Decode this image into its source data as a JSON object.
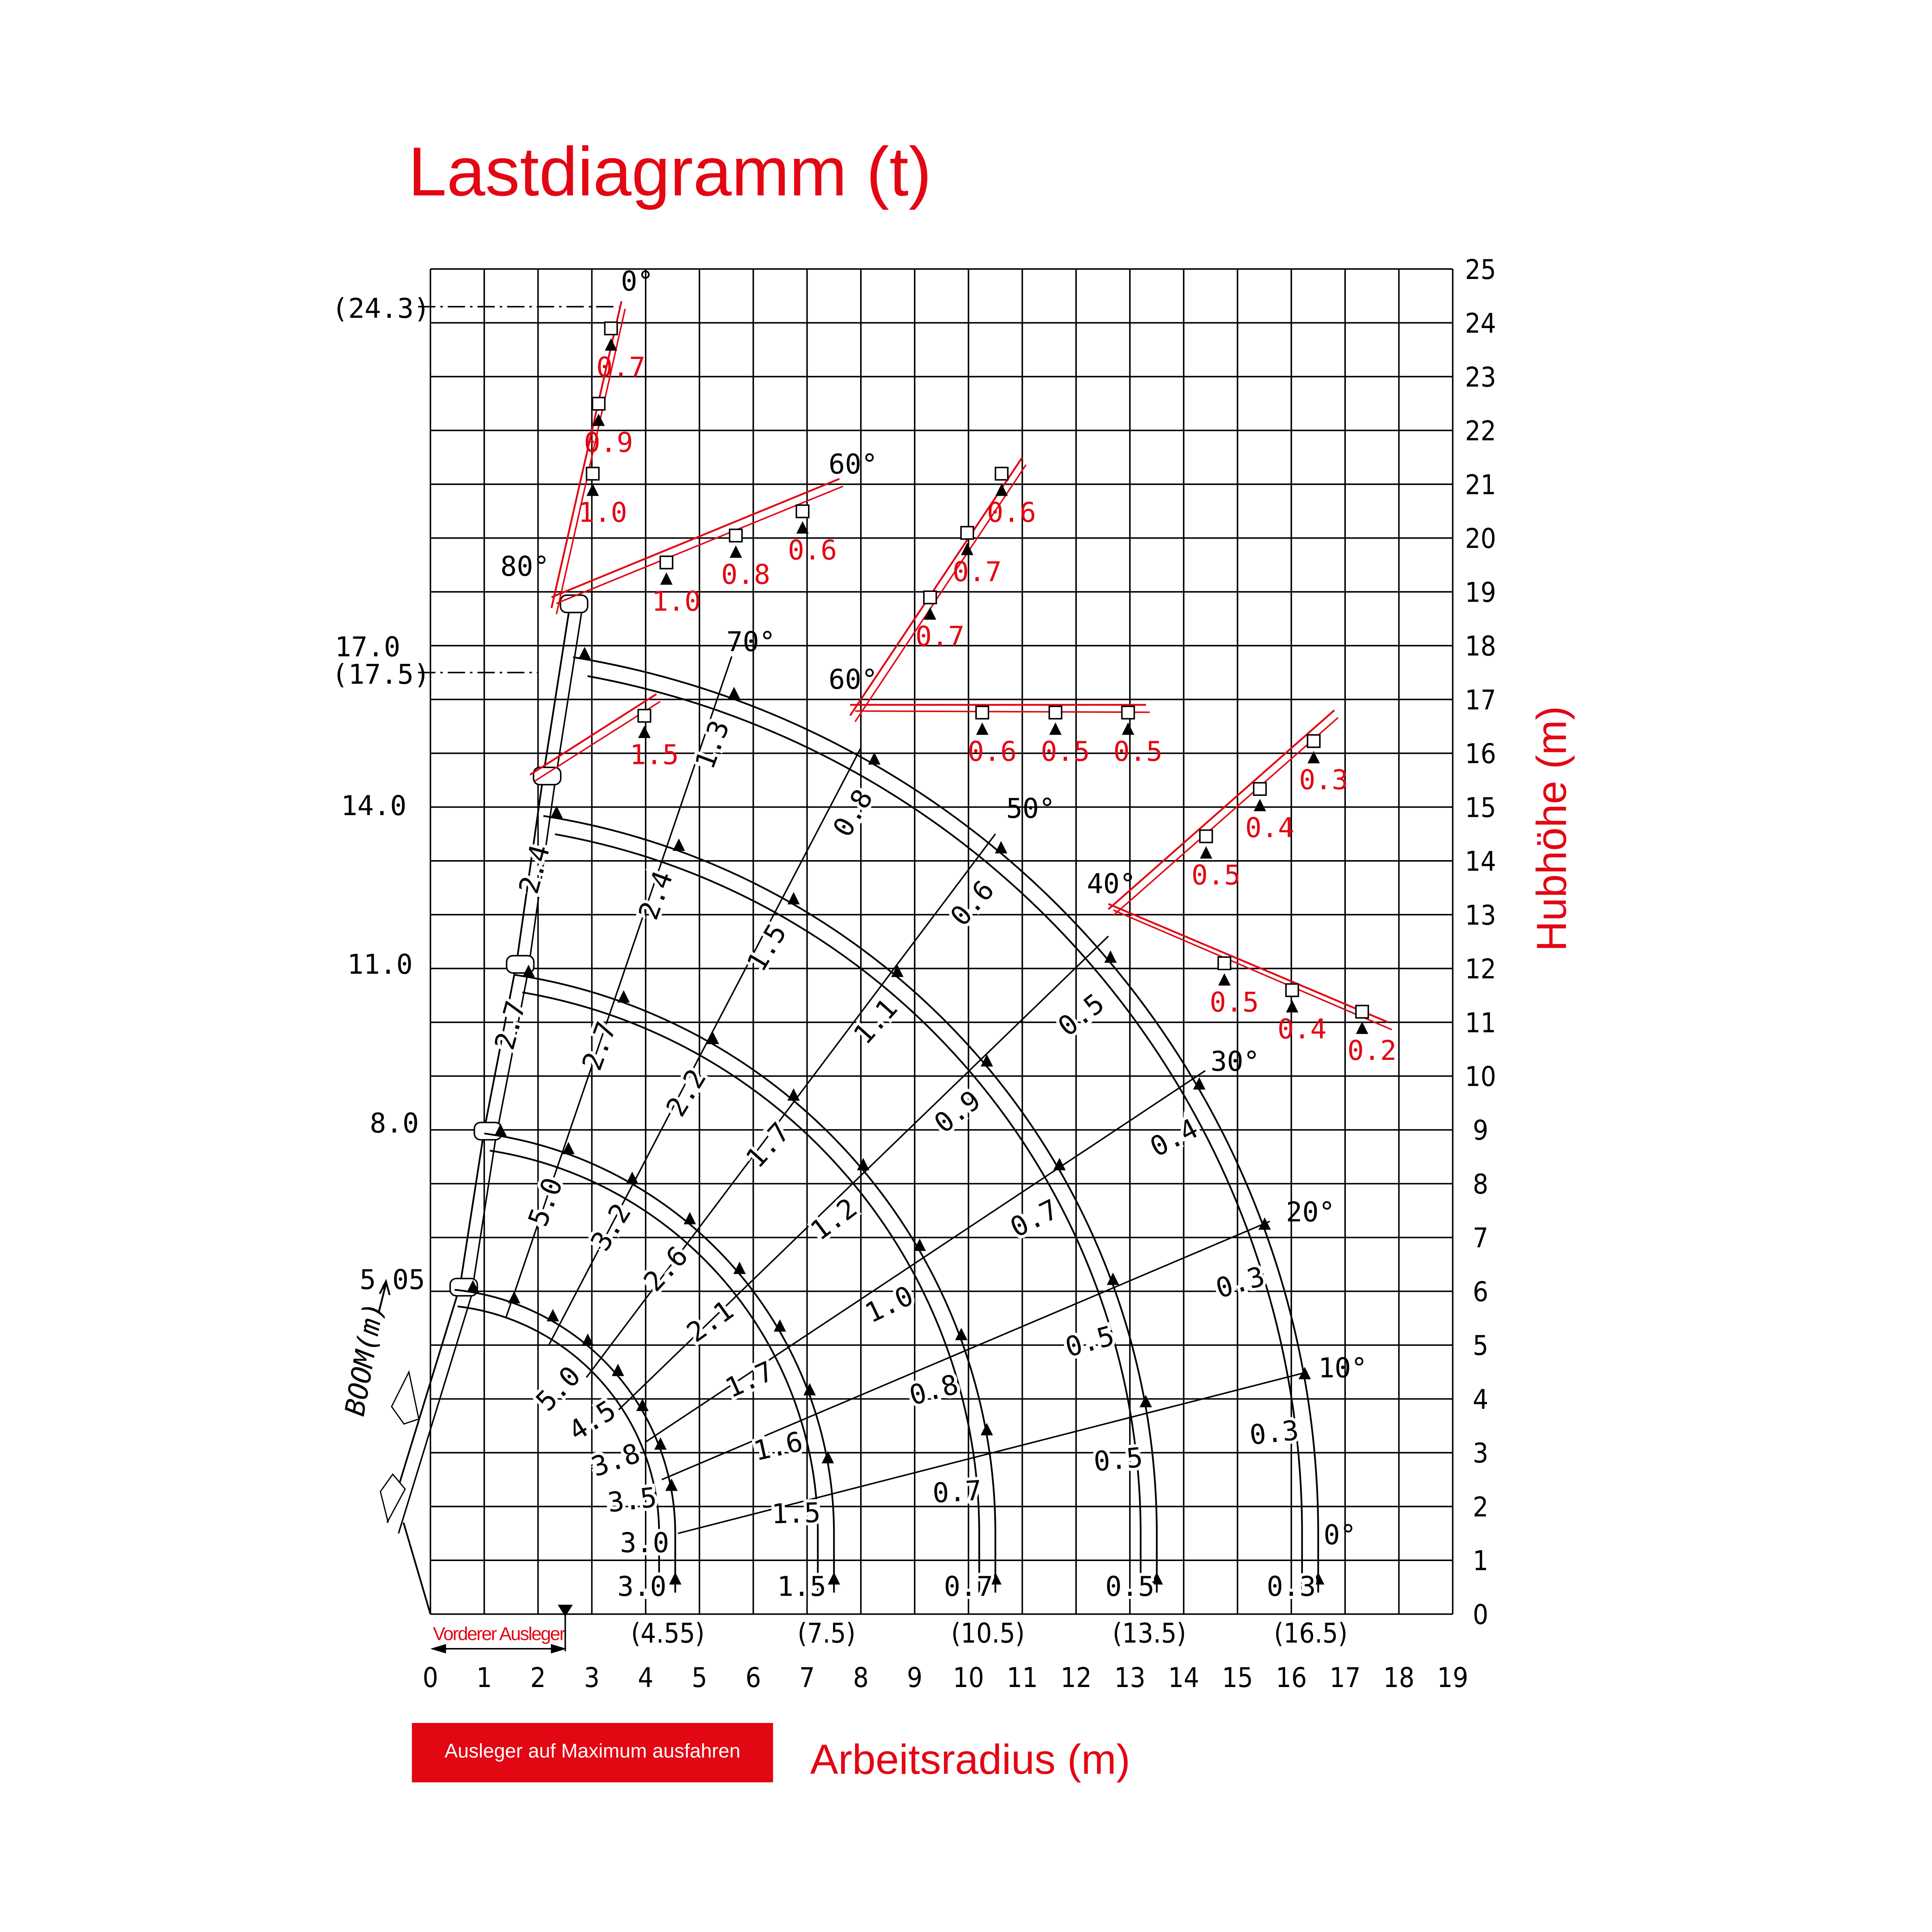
{
  "title": "Lastdiagramm (t)",
  "y_axis_label": "Hubhöhe (m)",
  "x_axis_label": "Arbeitsradius (m)",
  "boom_axis_label": "BOOM(m)",
  "extend_button_label": "Ausleger auf Maximum ausfahren",
  "front_boom_label": "Vorderer Ausleger",
  "colors": {
    "accent": "#e30613",
    "lines": "#000000"
  },
  "chart_data": {
    "type": "load-diagram",
    "xlim": [
      0,
      19
    ],
    "ylim": [
      0,
      25
    ],
    "grid": true,
    "x_ticks": [
      "0",
      "1",
      "2",
      "3",
      "4",
      "5",
      "6",
      "7",
      "8",
      "9",
      "10",
      "11",
      "12",
      "13",
      "14",
      "15",
      "16",
      "17",
      "18",
      "19"
    ],
    "y_ticks": [
      "0",
      "1",
      "2",
      "3",
      "4",
      "5",
      "6",
      "7",
      "8",
      "9",
      "10",
      "11",
      "12",
      "13",
      "14",
      "15",
      "16",
      "17",
      "18",
      "19",
      "20",
      "21",
      "22",
      "23",
      "24",
      "25"
    ],
    "booms": [
      {
        "length": "5.05",
        "radius": 4.55,
        "radius_label": "(4.55)"
      },
      {
        "length": "8.0",
        "radius": 7.5,
        "radius_label": "(7.5)"
      },
      {
        "length": "11.0",
        "radius": 10.5,
        "radius_label": "(10.5)"
      },
      {
        "length": "14.0",
        "radius": 13.5,
        "radius_label": "(13.5)"
      },
      {
        "length": "17.0",
        "radius": 16.5,
        "radius_label": "(16.5)"
      }
    ],
    "reference_heights": [
      {
        "label": "(24.3)",
        "y": 24.3
      },
      {
        "label": "(17.5)",
        "y": 17.5
      }
    ],
    "angle_labels": [
      {
        "text": "0°",
        "x": 3.54,
        "y": 24.6
      },
      {
        "text": "80°",
        "x": 1.3,
        "y": 19.3
      },
      {
        "text": "60°",
        "x": 7.4,
        "y": 21.2
      },
      {
        "text": "70°",
        "x": 5.5,
        "y": 17.9
      },
      {
        "text": "60°",
        "x": 7.4,
        "y": 17.2
      },
      {
        "text": "50°",
        "x": 10.7,
        "y": 14.8
      },
      {
        "text": "40°",
        "x": 12.2,
        "y": 13.4
      },
      {
        "text": "30°",
        "x": 14.5,
        "y": 10.1
      },
      {
        "text": "20°",
        "x": 15.9,
        "y": 7.3
      },
      {
        "text": "10°",
        "x": 16.5,
        "y": 4.4
      },
      {
        "text": "0°",
        "x": 16.6,
        "y": 1.3
      }
    ],
    "load_labels": [
      {
        "text": "3.0",
        "x": 3.93,
        "y": 0.34
      },
      {
        "text": "3.0",
        "x": 3.98,
        "y": 1.15
      },
      {
        "text": "3.5",
        "x": 3.77,
        "y": 1.95
      },
      {
        "text": "3.8",
        "x": 3.5,
        "y": 2.7
      },
      {
        "text": "4.5",
        "x": 3.1,
        "y": 3.45
      },
      {
        "text": "5.0",
        "x": 2.5,
        "y": 4.07
      },
      {
        "text": "2.6",
        "x": 4.5,
        "y": 6.3
      },
      {
        "text": "3.2",
        "x": 3.5,
        "y": 7.1
      },
      {
        "text": "5.0",
        "x": 2.3,
        "y": 7.6
      },
      {
        "text": "2.1",
        "x": 5.3,
        "y": 5.3
      },
      {
        "text": "1.7",
        "x": 6.0,
        "y": 4.2
      },
      {
        "text": "1.6",
        "x": 6.5,
        "y": 2.95
      },
      {
        "text": "1.5",
        "x": 6.8,
        "y": 1.7
      },
      {
        "text": "1.5",
        "x": 6.9,
        "y": 0.34
      },
      {
        "text": "2.2",
        "x": 4.9,
        "y": 9.6
      },
      {
        "text": "2.7",
        "x": 3.3,
        "y": 10.5
      },
      {
        "text": "2.7",
        "x": 1.65,
        "y": 10.9
      },
      {
        "text": "1.7",
        "x": 6.4,
        "y": 8.6
      },
      {
        "text": "1.2",
        "x": 7.6,
        "y": 7.2
      },
      {
        "text": "1.0",
        "x": 8.6,
        "y": 5.6
      },
      {
        "text": "0.8",
        "x": 9.4,
        "y": 4.0
      },
      {
        "text": "0.7",
        "x": 9.8,
        "y": 2.1
      },
      {
        "text": "0.7",
        "x": 10.0,
        "y": 0.34
      },
      {
        "text": "2.4",
        "x": 2.1,
        "y": 13.8
      },
      {
        "text": "2.4",
        "x": 4.35,
        "y": 13.3
      },
      {
        "text": "1.5",
        "x": 6.4,
        "y": 12.3
      },
      {
        "text": "1.1",
        "x": 8.4,
        "y": 10.9
      },
      {
        "text": "0.9",
        "x": 9.9,
        "y": 9.2
      },
      {
        "text": "0.7",
        "x": 11.3,
        "y": 7.2
      },
      {
        "text": "0.5",
        "x": 12.3,
        "y": 4.9
      },
      {
        "text": "0.5",
        "x": 12.8,
        "y": 2.7
      },
      {
        "text": "0.5",
        "x": 13.0,
        "y": 0.34
      },
      {
        "text": "1.3",
        "x": 5.4,
        "y": 16.1
      },
      {
        "text": "0.8",
        "x": 8.0,
        "y": 14.8
      },
      {
        "text": "0.6",
        "x": 10.2,
        "y": 13.1
      },
      {
        "text": "0.5",
        "x": 12.2,
        "y": 11.0
      },
      {
        "text": "0.4",
        "x": 13.9,
        "y": 8.7
      },
      {
        "text": "0.3",
        "x": 15.1,
        "y": 6.0
      },
      {
        "text": "0.3",
        "x": 15.7,
        "y": 3.2
      },
      {
        "text": "0.3",
        "x": 16.0,
        "y": 0.34
      }
    ],
    "jib_load_labels": [
      {
        "text": "0.7",
        "x": 3.54,
        "y": 23.0
      },
      {
        "text": "0.9",
        "x": 3.31,
        "y": 21.6
      },
      {
        "text": "1.0",
        "x": 3.2,
        "y": 20.3
      },
      {
        "text": "1.0",
        "x": 4.57,
        "y": 18.65
      },
      {
        "text": "0.8",
        "x": 5.86,
        "y": 19.15
      },
      {
        "text": "0.6",
        "x": 7.1,
        "y": 19.6
      },
      {
        "text": "1.5",
        "x": 4.16,
        "y": 15.8
      },
      {
        "text": "0.6",
        "x": 10.8,
        "y": 20.3
      },
      {
        "text": "0.7",
        "x": 10.16,
        "y": 19.2
      },
      {
        "text": "0.7",
        "x": 9.47,
        "y": 18.0
      },
      {
        "text": "0.6",
        "x": 10.44,
        "y": 15.86
      },
      {
        "text": "0.5",
        "x": 11.8,
        "y": 15.86
      },
      {
        "text": "0.5",
        "x": 13.15,
        "y": 15.86
      },
      {
        "text": "0.3",
        "x": 16.6,
        "y": 15.33
      },
      {
        "text": "0.4",
        "x": 15.6,
        "y": 14.44
      },
      {
        "text": "0.5",
        "x": 14.6,
        "y": 13.56
      },
      {
        "text": "0.5",
        "x": 14.94,
        "y": 11.2
      },
      {
        "text": "0.4",
        "x": 16.2,
        "y": 10.7
      },
      {
        "text": "0.2",
        "x": 17.5,
        "y": 10.3
      }
    ]
  }
}
